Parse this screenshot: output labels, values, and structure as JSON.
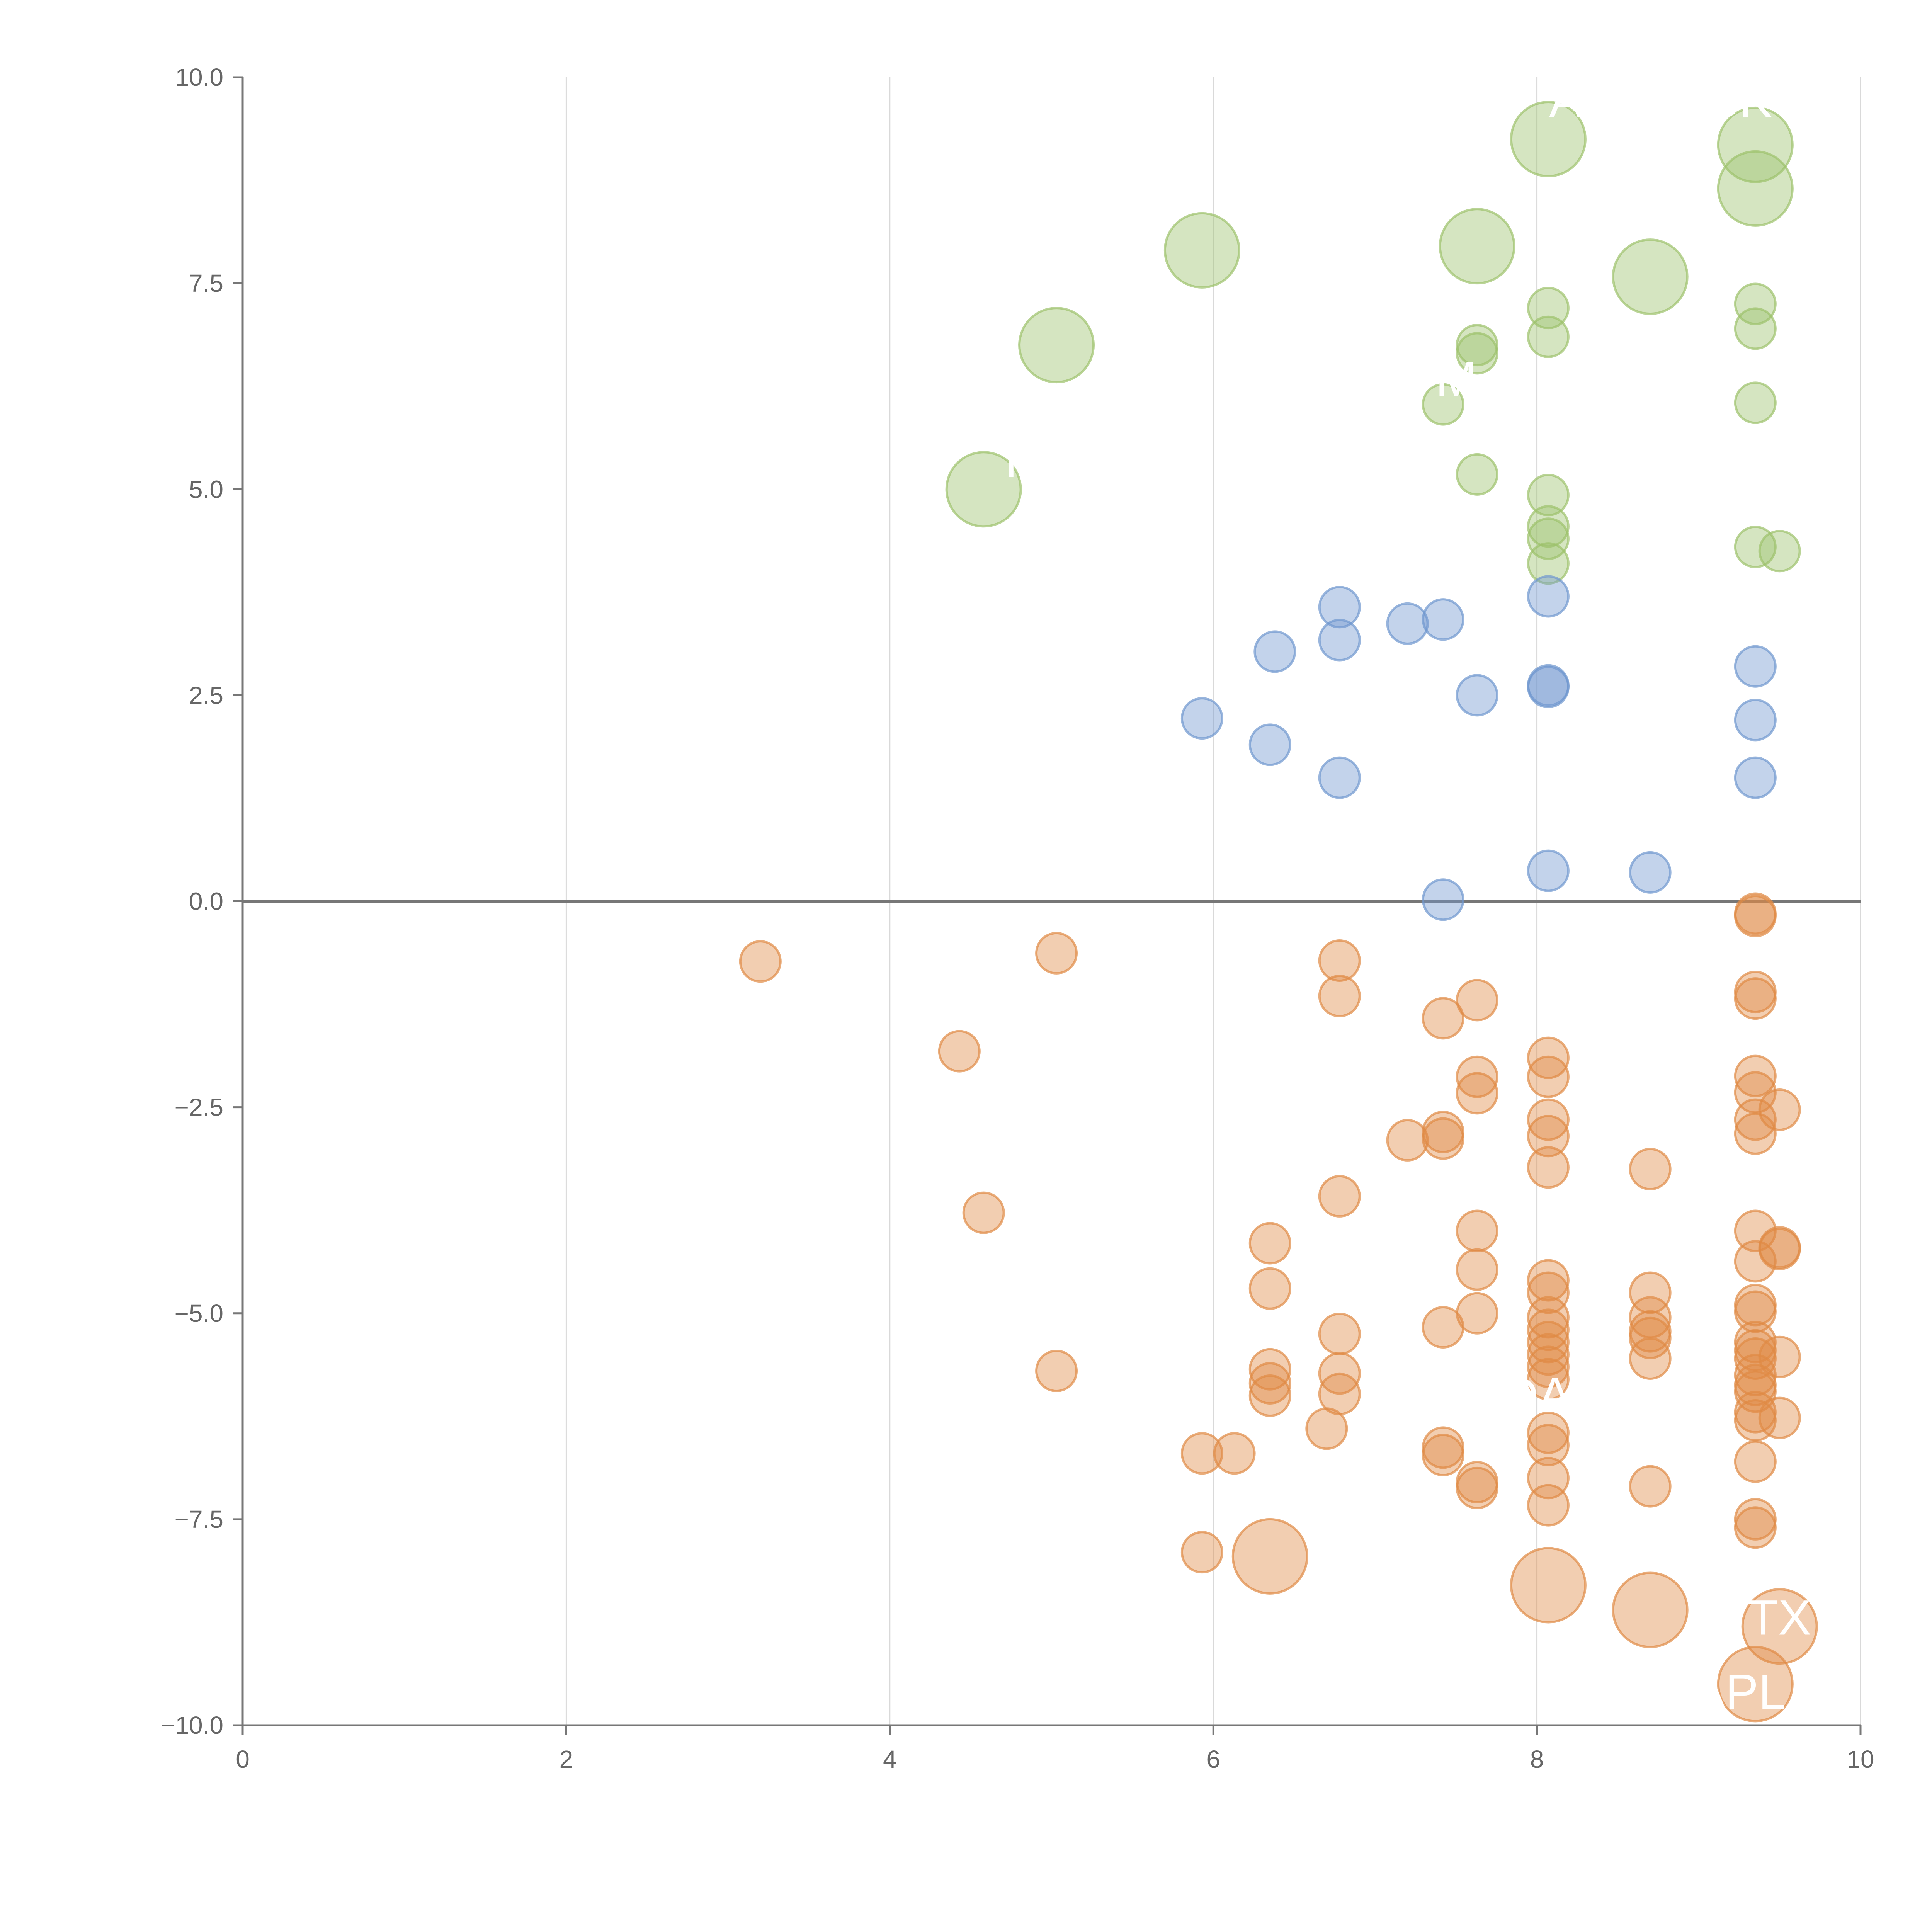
{
  "chart_data": {
    "type": "scatter",
    "title": "",
    "xlabel": "",
    "ylabel": "",
    "xlim": [
      0,
      10
    ],
    "ylim": [
      -10,
      10
    ],
    "x_ticks": [
      0,
      2,
      4,
      6,
      8,
      10
    ],
    "y_ticks": [
      -10,
      -7.5,
      -5,
      -2.5,
      0,
      2.5,
      5,
      7.5,
      10
    ],
    "x_tick_labels": [
      "0",
      "2",
      "4",
      "6",
      "8",
      "10"
    ],
    "y_tick_labels": [
      "−10.0",
      "−7.5",
      "−5.0",
      "−2.5",
      "0.0",
      "2.5",
      "5.0",
      "7.5",
      "10.0"
    ],
    "grid": "vertical",
    "colors": {
      "green": "#9cc26b",
      "blue": "#6f97cf",
      "orange": "#e08a45",
      "axis": "#777777",
      "grid": "#d9d9d9",
      "zero_line": "#777777"
    },
    "series": [
      {
        "name": "green",
        "color": "#9cc26b",
        "points": [
          {
            "x": 4.58,
            "y": 5.0,
            "size": "large"
          },
          {
            "x": 5.03,
            "y": 6.75,
            "size": "large"
          },
          {
            "x": 5.93,
            "y": 7.9,
            "size": "large"
          },
          {
            "x": 7.63,
            "y": 7.95,
            "size": "large"
          },
          {
            "x": 8.07,
            "y": 9.25,
            "size": "large"
          },
          {
            "x": 8.7,
            "y": 7.58,
            "size": "large"
          },
          {
            "x": 9.35,
            "y": 9.18,
            "size": "large"
          },
          {
            "x": 9.35,
            "y": 8.65,
            "size": "large"
          },
          {
            "x": 7.42,
            "y": 6.03,
            "size": "small"
          },
          {
            "x": 7.63,
            "y": 6.75,
            "size": "small"
          },
          {
            "x": 7.63,
            "y": 6.65,
            "size": "small"
          },
          {
            "x": 7.63,
            "y": 5.18,
            "size": "small"
          },
          {
            "x": 8.07,
            "y": 7.2,
            "size": "small"
          },
          {
            "x": 8.07,
            "y": 6.85,
            "size": "small"
          },
          {
            "x": 8.07,
            "y": 4.93,
            "size": "small"
          },
          {
            "x": 8.07,
            "y": 4.55,
            "size": "small"
          },
          {
            "x": 8.07,
            "y": 4.4,
            "size": "small"
          },
          {
            "x": 8.07,
            "y": 4.1,
            "size": "small"
          },
          {
            "x": 9.35,
            "y": 7.25,
            "size": "small"
          },
          {
            "x": 9.35,
            "y": 6.95,
            "size": "small"
          },
          {
            "x": 9.35,
            "y": 6.05,
            "size": "small"
          },
          {
            "x": 9.35,
            "y": 4.3,
            "size": "small"
          },
          {
            "x": 9.5,
            "y": 4.25,
            "size": "small"
          }
        ]
      },
      {
        "name": "blue",
        "color": "#6f97cf",
        "points": [
          {
            "x": 5.93,
            "y": 2.22,
            "size": "small"
          },
          {
            "x": 6.38,
            "y": 3.03,
            "size": "small"
          },
          {
            "x": 6.35,
            "y": 1.9,
            "size": "small"
          },
          {
            "x": 6.78,
            "y": 3.57,
            "size": "small"
          },
          {
            "x": 6.78,
            "y": 3.17,
            "size": "small"
          },
          {
            "x": 6.78,
            "y": 1.5,
            "size": "small"
          },
          {
            "x": 7.2,
            "y": 3.37,
            "size": "small"
          },
          {
            "x": 7.42,
            "y": 3.42,
            "size": "small"
          },
          {
            "x": 7.42,
            "y": 0.02,
            "size": "small"
          },
          {
            "x": 7.63,
            "y": 2.5,
            "size": "small"
          },
          {
            "x": 8.07,
            "y": 3.7,
            "size": "small"
          },
          {
            "x": 8.07,
            "y": 2.6,
            "size": "small"
          },
          {
            "x": 8.07,
            "y": 2.62,
            "size": "small"
          },
          {
            "x": 8.07,
            "y": 0.37,
            "size": "small"
          },
          {
            "x": 8.7,
            "y": 0.35,
            "size": "small"
          },
          {
            "x": 9.35,
            "y": 2.85,
            "size": "small"
          },
          {
            "x": 9.35,
            "y": 2.2,
            "size": "small"
          },
          {
            "x": 9.35,
            "y": 1.5,
            "size": "small"
          }
        ]
      },
      {
        "name": "orange",
        "color": "#e08a45",
        "points": [
          {
            "x": 3.2,
            "y": -0.73,
            "size": "small"
          },
          {
            "x": 4.43,
            "y": -1.82,
            "size": "small"
          },
          {
            "x": 4.58,
            "y": -3.78,
            "size": "small"
          },
          {
            "x": 5.03,
            "y": -0.63,
            "size": "small"
          },
          {
            "x": 5.03,
            "y": -5.7,
            "size": "small"
          },
          {
            "x": 5.93,
            "y": -6.7,
            "size": "small"
          },
          {
            "x": 5.93,
            "y": -7.9,
            "size": "small"
          },
          {
            "x": 6.13,
            "y": -6.7,
            "size": "small"
          },
          {
            "x": 6.35,
            "y": -4.15,
            "size": "small"
          },
          {
            "x": 6.35,
            "y": -4.7,
            "size": "small"
          },
          {
            "x": 6.35,
            "y": -5.68,
            "size": "small"
          },
          {
            "x": 6.35,
            "y": -5.85,
            "size": "small"
          },
          {
            "x": 6.35,
            "y": -6.0,
            "size": "small"
          },
          {
            "x": 6.35,
            "y": -7.95,
            "size": "large"
          },
          {
            "x": 6.7,
            "y": -6.4,
            "size": "small"
          },
          {
            "x": 6.78,
            "y": -0.72,
            "size": "small"
          },
          {
            "x": 6.78,
            "y": -1.15,
            "size": "small"
          },
          {
            "x": 6.78,
            "y": -3.58,
            "size": "small"
          },
          {
            "x": 6.78,
            "y": -5.25,
            "size": "small"
          },
          {
            "x": 6.78,
            "y": -5.73,
            "size": "small"
          },
          {
            "x": 6.78,
            "y": -5.98,
            "size": "small"
          },
          {
            "x": 7.2,
            "y": -2.9,
            "size": "small"
          },
          {
            "x": 7.42,
            "y": -1.42,
            "size": "small"
          },
          {
            "x": 7.42,
            "y": -2.8,
            "size": "small"
          },
          {
            "x": 7.42,
            "y": -2.88,
            "size": "small"
          },
          {
            "x": 7.42,
            "y": -5.17,
            "size": "small"
          },
          {
            "x": 7.42,
            "y": -6.63,
            "size": "small"
          },
          {
            "x": 7.42,
            "y": -6.72,
            "size": "small"
          },
          {
            "x": 7.63,
            "y": -1.2,
            "size": "small"
          },
          {
            "x": 7.63,
            "y": -2.13,
            "size": "small"
          },
          {
            "x": 7.63,
            "y": -2.33,
            "size": "small"
          },
          {
            "x": 7.63,
            "y": -4.0,
            "size": "small"
          },
          {
            "x": 7.63,
            "y": -4.47,
            "size": "small"
          },
          {
            "x": 7.63,
            "y": -5.0,
            "size": "small"
          },
          {
            "x": 7.63,
            "y": -7.05,
            "size": "small"
          },
          {
            "x": 7.63,
            "y": -7.12,
            "size": "small"
          },
          {
            "x": 8.07,
            "y": -1.9,
            "size": "small"
          },
          {
            "x": 8.07,
            "y": -2.13,
            "size": "small"
          },
          {
            "x": 8.07,
            "y": -2.65,
            "size": "small"
          },
          {
            "x": 8.07,
            "y": -2.85,
            "size": "small"
          },
          {
            "x": 8.07,
            "y": -3.23,
            "size": "small"
          },
          {
            "x": 8.07,
            "y": -4.6,
            "size": "small"
          },
          {
            "x": 8.07,
            "y": -4.75,
            "size": "small"
          },
          {
            "x": 8.07,
            "y": -5.05,
            "size": "small"
          },
          {
            "x": 8.07,
            "y": -5.2,
            "size": "small"
          },
          {
            "x": 8.07,
            "y": -5.35,
            "size": "small"
          },
          {
            "x": 8.07,
            "y": -5.5,
            "size": "small"
          },
          {
            "x": 8.07,
            "y": -5.65,
            "size": "small"
          },
          {
            "x": 8.07,
            "y": -5.8,
            "size": "small"
          },
          {
            "x": 8.07,
            "y": -6.45,
            "size": "small"
          },
          {
            "x": 8.07,
            "y": -6.6,
            "size": "small"
          },
          {
            "x": 8.07,
            "y": -7.0,
            "size": "small"
          },
          {
            "x": 8.07,
            "y": -7.33,
            "size": "small"
          },
          {
            "x": 8.07,
            "y": -8.3,
            "size": "large"
          },
          {
            "x": 8.7,
            "y": -3.25,
            "size": "small"
          },
          {
            "x": 8.7,
            "y": -4.75,
            "size": "small"
          },
          {
            "x": 8.7,
            "y": -5.05,
            "size": "small"
          },
          {
            "x": 8.7,
            "y": -5.22,
            "size": "small"
          },
          {
            "x": 8.7,
            "y": -5.3,
            "size": "small"
          },
          {
            "x": 8.7,
            "y": -5.55,
            "size": "small"
          },
          {
            "x": 8.7,
            "y": -7.1,
            "size": "small"
          },
          {
            "x": 8.7,
            "y": -8.6,
            "size": "large"
          },
          {
            "x": 9.35,
            "y": -0.15,
            "size": "small"
          },
          {
            "x": 9.35,
            "y": -0.18,
            "size": "small"
          },
          {
            "x": 9.35,
            "y": -1.1,
            "size": "small"
          },
          {
            "x": 9.35,
            "y": -1.18,
            "size": "small"
          },
          {
            "x": 9.35,
            "y": -2.12,
            "size": "small"
          },
          {
            "x": 9.35,
            "y": -2.32,
            "size": "small"
          },
          {
            "x": 9.35,
            "y": -2.65,
            "size": "small"
          },
          {
            "x": 9.35,
            "y": -2.82,
            "size": "small"
          },
          {
            "x": 9.35,
            "y": -4.0,
            "size": "small"
          },
          {
            "x": 9.35,
            "y": -4.37,
            "size": "small"
          },
          {
            "x": 9.35,
            "y": -4.9,
            "size": "small"
          },
          {
            "x": 9.35,
            "y": -4.98,
            "size": "small"
          },
          {
            "x": 9.35,
            "y": -5.35,
            "size": "small"
          },
          {
            "x": 9.35,
            "y": -5.45,
            "size": "small"
          },
          {
            "x": 9.35,
            "y": -5.55,
            "size": "small"
          },
          {
            "x": 9.35,
            "y": -5.75,
            "size": "small"
          },
          {
            "x": 9.35,
            "y": -5.87,
            "size": "small"
          },
          {
            "x": 9.35,
            "y": -5.95,
            "size": "small"
          },
          {
            "x": 9.35,
            "y": -6.2,
            "size": "small"
          },
          {
            "x": 9.35,
            "y": -6.3,
            "size": "small"
          },
          {
            "x": 9.35,
            "y": -6.8,
            "size": "small"
          },
          {
            "x": 9.35,
            "y": -7.5,
            "size": "small"
          },
          {
            "x": 9.35,
            "y": -7.6,
            "size": "small"
          },
          {
            "x": 9.35,
            "y": -9.5,
            "size": "large"
          },
          {
            "x": 9.5,
            "y": -2.53,
            "size": "small"
          },
          {
            "x": 9.5,
            "y": -4.2,
            "size": "small"
          },
          {
            "x": 9.5,
            "y": -4.22,
            "size": "small"
          },
          {
            "x": 9.5,
            "y": -5.53,
            "size": "small"
          },
          {
            "x": 9.5,
            "y": -6.27,
            "size": "small"
          },
          {
            "x": 9.5,
            "y": -8.8,
            "size": "large"
          }
        ]
      }
    ],
    "annotations": [
      {
        "text": "AA",
        "x": 8.28,
        "y": 9.52,
        "color": "#ffffff"
      },
      {
        "text": "SK",
        "x": 9.25,
        "y": 9.52,
        "color": "#ffffff"
      },
      {
        "text": "M",
        "x": 7.5,
        "y": 6.13,
        "color": "#ffffff"
      },
      {
        "text": "I",
        "x": 4.75,
        "y": 5.15,
        "color": "#ffffff"
      },
      {
        "text": "DA",
        "x": 8.0,
        "y": -6.2,
        "color": "#ffffff"
      },
      {
        "text": "TX",
        "x": 9.5,
        "y": -8.9,
        "color": "#ffffff"
      },
      {
        "text": "APL",
        "x": 9.25,
        "y": -9.8,
        "color": "#ffffff"
      }
    ]
  }
}
